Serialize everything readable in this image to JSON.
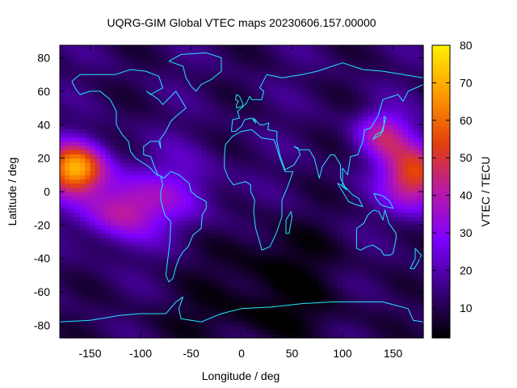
{
  "chart_data": {
    "type": "heatmap",
    "title": "UQRG-GIM Global VTEC maps 20230606.157.00000",
    "xlabel": "Longitude / deg",
    "ylabel": "Latitude / deg",
    "colorbar_label": "VTEC / TECU",
    "xlim": [
      -180,
      180
    ],
    "ylim": [
      -87.5,
      87.5
    ],
    "clim": [
      2,
      80
    ],
    "x_ticks": [
      -150,
      -100,
      -50,
      0,
      50,
      100,
      150
    ],
    "y_ticks": [
      -80,
      -60,
      -40,
      -20,
      0,
      20,
      40,
      60,
      80
    ],
    "colorbar_ticks": [
      10,
      20,
      30,
      40,
      50,
      60,
      70,
      80
    ],
    "colormap": [
      "#000000",
      "#3a0080",
      "#7c00ff",
      "#b818a8",
      "#e4400a",
      "#ff9a00",
      "#fff000"
    ],
    "overlay_color": "#22e8ff",
    "grid": false,
    "legend": "none"
  }
}
